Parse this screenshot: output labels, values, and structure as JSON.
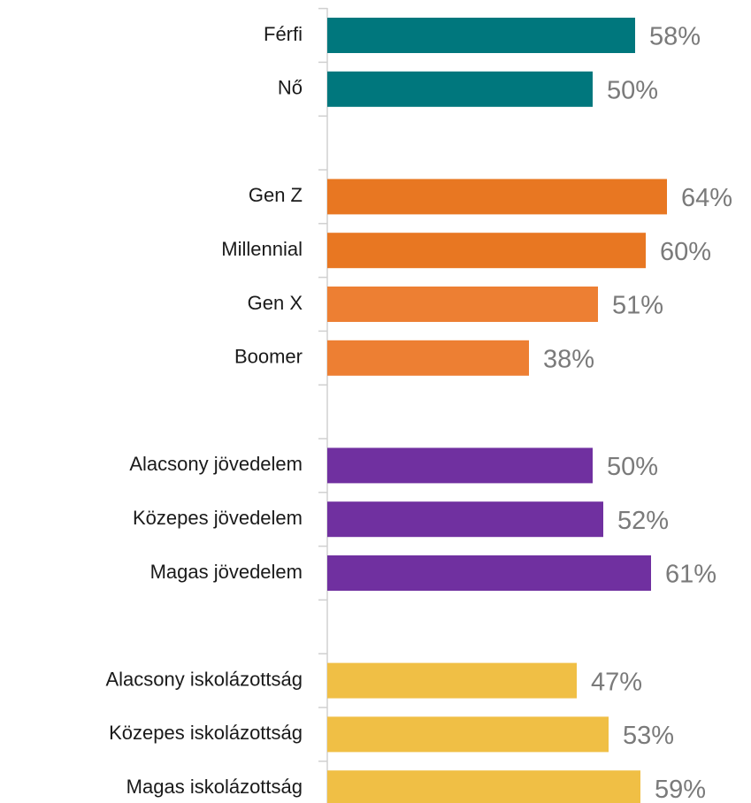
{
  "chart_data": {
    "type": "hbar",
    "categories": [
      "Férfi",
      "Nő",
      null,
      "Gen Z",
      "Millennial",
      "Gen X",
      "Boomer",
      null,
      "Alacsony jövedelem",
      "Közepes jövedelem",
      "Magas jövedelem",
      null,
      "Alacsony iskolázottság",
      "Közepes iskolázottság",
      "Magas iskolázottság"
    ],
    "values": [
      58,
      50,
      null,
      64,
      60,
      51,
      38,
      null,
      50,
      52,
      61,
      null,
      47,
      53,
      59
    ],
    "value_labels": [
      "58%",
      "50%",
      null,
      "64%",
      "60%",
      "51%",
      "38%",
      null,
      "50%",
      "52%",
      "61%",
      null,
      "47%",
      "53%",
      "59%"
    ],
    "colors": [
      "#00777d",
      "#00777d",
      null,
      "#e87722",
      "#e87722",
      "#ed7f33",
      "#ed7f33",
      null,
      "#7030a0",
      "#7030a0",
      "#7030a0",
      null,
      "#f0bf45",
      "#f0bf45",
      "#f0bf45"
    ],
    "xlim": [
      0,
      80
    ]
  }
}
